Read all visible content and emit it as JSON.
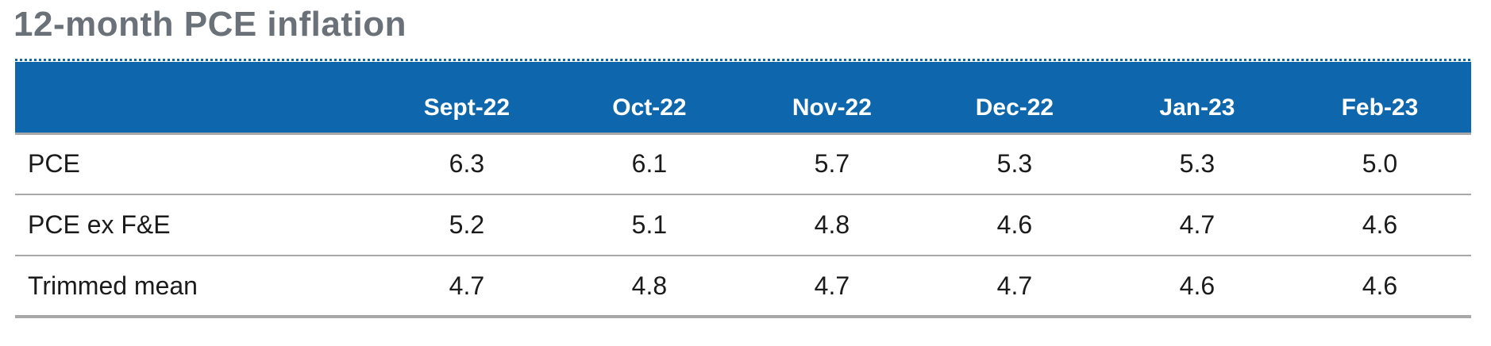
{
  "title": "12-month PCE inflation",
  "table": {
    "columns": [
      "Sept-22",
      "Oct-22",
      "Nov-22",
      "Dec-22",
      "Jan-23",
      "Feb-23"
    ],
    "rows": [
      {
        "label": "PCE",
        "values": [
          "6.3",
          "6.1",
          "5.7",
          "5.3",
          "5.3",
          "5.0"
        ]
      },
      {
        "label": "PCE ex F&E",
        "values": [
          "5.2",
          "5.1",
          "4.8",
          "4.6",
          "4.7",
          "4.6"
        ]
      },
      {
        "label": "Trimmed mean",
        "values": [
          "4.7",
          "4.8",
          "4.7",
          "4.7",
          "4.6",
          "4.6"
        ]
      }
    ]
  },
  "colors": {
    "header_background": "#0e67ac",
    "header_text": "#ffffff",
    "title_text": "#6b7178",
    "body_text": "#1b1b1b",
    "rule_gray": "#a8a8a8",
    "page_background": "#ffffff"
  },
  "chart_data": {
    "type": "table",
    "title": "12-month PCE inflation",
    "categories": [
      "Sept-22",
      "Oct-22",
      "Nov-22",
      "Dec-22",
      "Jan-23",
      "Feb-23"
    ],
    "series": [
      {
        "name": "PCE",
        "values": [
          6.3,
          6.1,
          5.7,
          5.3,
          5.3,
          5.0
        ]
      },
      {
        "name": "PCE ex F&E",
        "values": [
          5.2,
          5.1,
          4.8,
          4.6,
          4.7,
          4.6
        ]
      },
      {
        "name": "Trimmed mean",
        "values": [
          4.7,
          4.8,
          4.7,
          4.7,
          4.6,
          4.6
        ]
      }
    ],
    "legend_position": "none",
    "grid": false
  }
}
